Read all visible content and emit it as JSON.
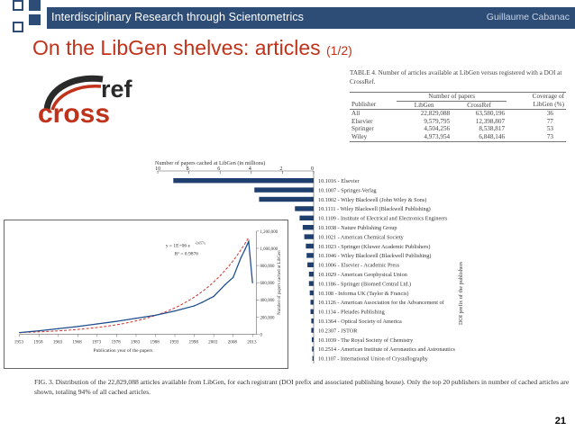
{
  "header": {
    "title": "Interdisciplinary Research through Scientometrics",
    "author": "Guillaume Cabanac"
  },
  "slide": {
    "title": "On the LibGen shelves: articles",
    "subtitle": "(1/2)",
    "page_number": "21"
  },
  "logo": {
    "word_main": "cross",
    "word_super": "ref"
  },
  "table4": {
    "caption": "TABLE 4.   Number of articles available at LibGen versus registered with a DOI at CrossRef.",
    "group_header": "Number of papers",
    "coverage_header_1": "Coverage of",
    "coverage_header_2": "LibGen (%)",
    "columns": [
      "Publisher",
      "LibGen",
      "CrossRef"
    ],
    "rows": [
      {
        "publisher": "All",
        "libgen": "22,829,088",
        "crossref": "63,580,196",
        "coverage": "36"
      },
      {
        "publisher": "Elsevier",
        "libgen": "9,579,795",
        "crossref": "12,398,807",
        "coverage": "77"
      },
      {
        "publisher": "Springer",
        "libgen": "4,504,256",
        "crossref": "8,538,817",
        "coverage": "53"
      },
      {
        "publisher": "Wiley",
        "libgen": "4,973,954",
        "crossref": "6,848,146",
        "coverage": "73"
      }
    ]
  },
  "chart_data": [
    {
      "type": "bar",
      "orientation": "horizontal",
      "title": "Number of papers cached at LibGen (in millions)",
      "ylabel": "DOI prefix of the publishers",
      "xlim": [
        10,
        0
      ],
      "x_ticks": [
        "10",
        "8",
        "6",
        "4",
        "2",
        "0"
      ],
      "categories": [
        "10.1016 - Elsevier",
        "10.1007 - Springer-Verlag",
        "10.1002 - Wiley Blackwell (John Wiley & Sons)",
        "10.1111 - Wiley Blackwell (Blackwell Publishing)",
        "10.1109 - Institute of Electrical and Electronics Engineers",
        "10.1038 - Nature Publishing Group",
        "10.1021 - American Chemical Society",
        "10.1023 - Springer (Kluwer Academic Publishers)",
        "10.1046 - Wiley Blackwell (Blackwell Publishing)",
        "10.1006 - Elsevier - Academic Press",
        "10.1029 - American Geophysical Union",
        "10.1186 - Springer (Biomed Central Ltd.)",
        "10.108 - Informa UK (Taylor & Francis)",
        "10.1126 - American Association for the Advancement of",
        "10.1134 - Pleiades Publishing",
        "10.1364 - Optical Society of America",
        "10.2307 - JSTOR",
        "10.1039 - The Royal Society of Chemistry",
        "10.2514 - American Institute of Aeronautics and Astronautics",
        "10.1107 - International Union of Crystallography"
      ],
      "values": [
        9.0,
        3.8,
        3.5,
        1.2,
        0.9,
        0.7,
        0.6,
        0.5,
        0.45,
        0.4,
        0.3,
        0.3,
        0.25,
        0.2,
        0.2,
        0.15,
        0.15,
        0.12,
        0.1,
        0.08
      ],
      "colors": {
        "bar": "#1f3f6e"
      }
    },
    {
      "type": "line",
      "xlabel": "Publication year of the papers",
      "ylabel": "Number of papers cached at LibGen",
      "x_ticks": [
        "1953",
        "1958",
        "1963",
        "1968",
        "1973",
        "1978",
        "1983",
        "1988",
        "1993",
        "1998",
        "2003",
        "2008",
        "2013"
      ],
      "y_ticks": [
        "0",
        "200,000",
        "400,000",
        "600,000",
        "800,000",
        "1,000,000",
        "1,200,000"
      ],
      "xlim": [
        1953,
        2014
      ],
      "ylim": [
        0,
        1200000
      ],
      "fit_equation": "y = 1E+06 e",
      "fit_exponent": "-0.057x",
      "fit_r2": "R² = 0.9876",
      "series": [
        {
          "name": "",
          "x": [
            1953,
            1958,
            1963,
            1968,
            1973,
            1978,
            1983,
            1988,
            1993,
            1998,
            2000,
            2003,
            2006,
            2008,
            2010,
            2011,
            2012,
            2013
          ],
          "y": [
            20000,
            40000,
            65000,
            90000,
            120000,
            150000,
            185000,
            220000,
            270000,
            330000,
            370000,
            440000,
            580000,
            660000,
            890000,
            980000,
            1080000,
            600000
          ]
        }
      ],
      "colors": {
        "line": "#1f4e8c",
        "fit": "#d0302a"
      }
    }
  ],
  "caption": "FIG. 3.   Distribution of the 22,829,088 articles available from LibGen, for each registrant (DOI prefix and associated publishing house). Only the top 20 publishers in number of cached articles are shown, totaling 94% of all cached articles."
}
